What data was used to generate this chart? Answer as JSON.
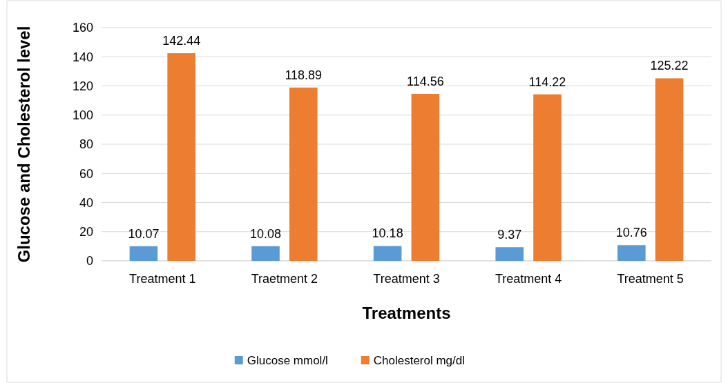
{
  "chart_data": {
    "type": "bar",
    "xlabel": "Treatments",
    "ylabel": "Glucose and Cholesterol level",
    "categories": [
      "Treatment 1",
      "Traetment 2",
      "Treatment 3",
      "Treatment 4",
      "Treatment 5"
    ],
    "series": [
      {
        "name": "Glucose mmol/l",
        "color": "#5b9bd5",
        "values": [
          10.07,
          10.08,
          10.18,
          9.37,
          10.76
        ]
      },
      {
        "name": "Cholesterol mg/dl",
        "color": "#ed7d31",
        "values": [
          142.44,
          118.89,
          114.56,
          114.22,
          125.22
        ]
      }
    ],
    "ylim": [
      0,
      160
    ],
    "yticks": [
      0,
      20,
      40,
      60,
      80,
      100,
      120,
      140,
      160
    ],
    "grid": "y",
    "legend": "bottom",
    "data_labels": true
  }
}
